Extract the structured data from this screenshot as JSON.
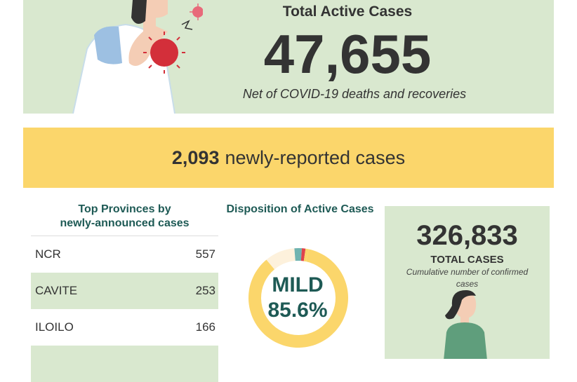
{
  "hero": {
    "title": "Total Active Cases",
    "number": "47,655",
    "subtitle": "Net of COVID-19 deaths and recoveries"
  },
  "new_cases": {
    "number": "2,093",
    "label": "newly-reported cases"
  },
  "provinces": {
    "title_line1": "Top Provinces by",
    "title_line2": "newly-announced cases",
    "rows": [
      {
        "name": "NCR",
        "value": "557"
      },
      {
        "name": "CAVITE",
        "value": "253"
      },
      {
        "name": "ILOILO",
        "value": "166"
      },
      {
        "name": "",
        "value": ""
      }
    ]
  },
  "disposition": {
    "title": "Disposition of Active Cases",
    "center_label_line1": "MILD",
    "center_label_line2": "85.6%"
  },
  "total": {
    "number": "326,833",
    "label": "TOTAL CASES",
    "subtitle": "Cumulative number of confirmed cases"
  },
  "colors": {
    "green_bg": "#d9e8cf",
    "yellow": "#fbd66b",
    "teal_text": "#1e5a55",
    "mild": "#fbd66b",
    "asymptomatic": "#fdf1dc",
    "severe": "#e0434b",
    "critical": "#6fb3b0"
  },
  "chart_data": {
    "type": "pie",
    "title": "Disposition of Active Cases",
    "slices": [
      {
        "name": "",
        "value": 85.6,
        "color": "#fbd66b"
      },
      {
        "name": "",
        "value": 9.8,
        "color": "#fdf1dc"
      },
      {
        "name": "",
        "value": 2.4,
        "color": "#6fb3b0"
      },
      {
        "name": "",
        "value": 1.2,
        "color": "#e0434b"
      },
      {
        "name": "",
        "value": 1.0,
        "color": "#fbd66b"
      }
    ],
    "center_label": "MILD 85.6%"
  }
}
